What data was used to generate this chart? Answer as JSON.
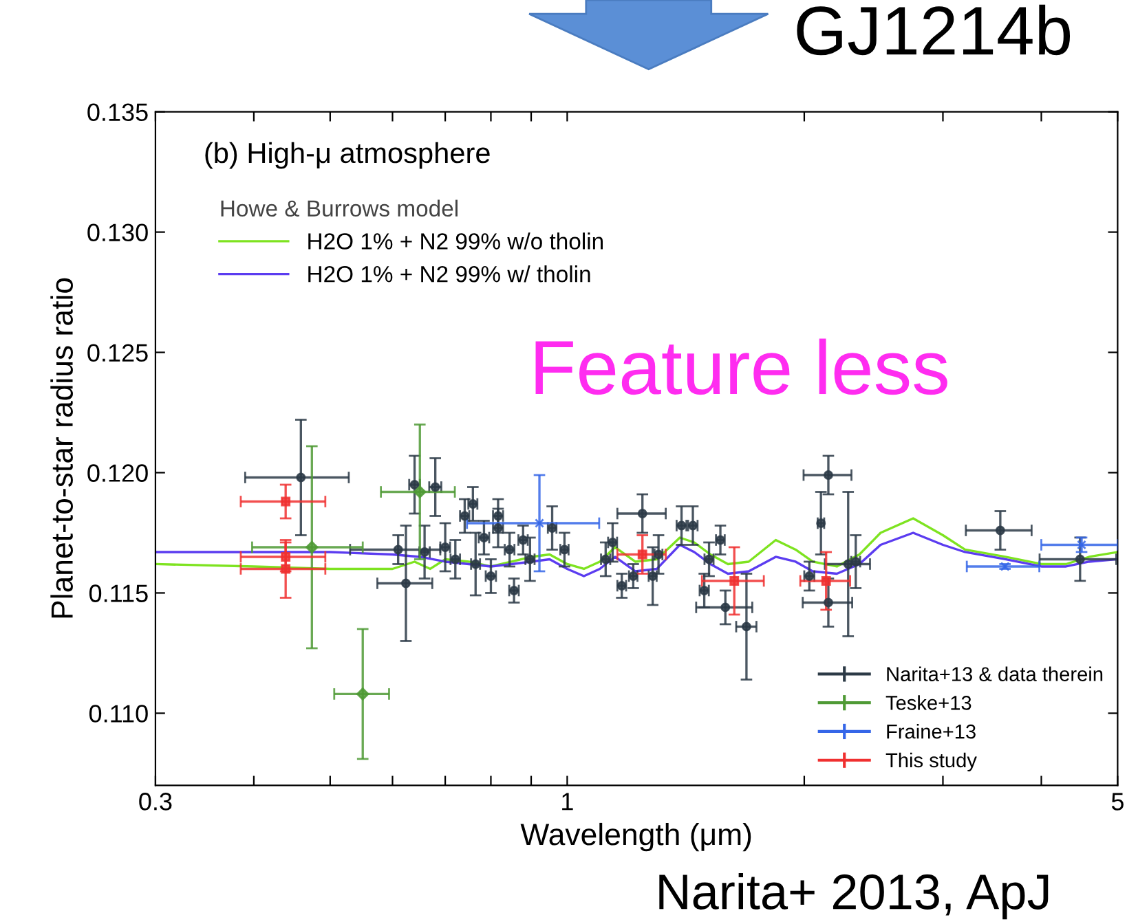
{
  "chart_data": {
    "type": "scatter",
    "title": "(b) High-μ atmosphere",
    "xlabel": "Wavelength (μm)",
    "ylabel": "Planet-to-star radius ratio",
    "legend_title": "Howe & Burrows model",
    "legend": [
      "top left",
      "bottom right"
    ],
    "log": "x",
    "xlim": [
      0.3,
      5
    ],
    "ylim": [
      0.107,
      0.135
    ],
    "xticks": [
      0.3,
      {
        "value": 0.4,
        "label": null
      },
      {
        "value": 0.5,
        "label": null
      },
      {
        "value": 0.6,
        "label": null
      },
      {
        "value": 0.7,
        "label": null
      },
      {
        "value": 0.8,
        "label": null
      },
      {
        "value": 0.9,
        "label": null
      },
      1,
      {
        "value": 2,
        "label": null
      },
      {
        "value": 3,
        "label": null
      },
      {
        "value": 4,
        "label": null
      },
      5
    ],
    "yticks": [
      {
        "value": 0.11,
        "label": "0.110"
      },
      0.115,
      {
        "value": 0.12,
        "label": "0.120"
      },
      0.125,
      {
        "value": 0.13,
        "label": "0.130"
      },
      0.135
    ],
    "annotations": [
      "GJ1214b",
      "Feature less",
      "Narita+ 2013, ApJ"
    ],
    "series": [
      {
        "name": "H2O 1% + N2 99% w/o tholin",
        "type": "line",
        "color": "#7ee320",
        "x": [
          0.3,
          0.4,
          0.5,
          0.6,
          0.64,
          0.67,
          0.7,
          0.75,
          0.8,
          0.85,
          0.9,
          0.95,
          1.0,
          1.05,
          1.1,
          1.15,
          1.22,
          1.3,
          1.39,
          1.45,
          1.52,
          1.6,
          1.7,
          1.84,
          1.95,
          2.05,
          2.2,
          2.35,
          2.5,
          2.75,
          3.0,
          3.2,
          3.6,
          4.0,
          4.3,
          4.6,
          5.0
        ],
        "values": [
          0.1162,
          0.1161,
          0.116,
          0.116,
          0.1163,
          0.116,
          0.1164,
          0.1163,
          0.1161,
          0.1163,
          0.1165,
          0.1166,
          0.1162,
          0.116,
          0.1163,
          0.1169,
          0.1163,
          0.1164,
          0.1173,
          0.1171,
          0.1166,
          0.1162,
          0.1163,
          0.1172,
          0.1168,
          0.1163,
          0.1161,
          0.1166,
          0.1175,
          0.1181,
          0.1174,
          0.1168,
          0.1165,
          0.1162,
          0.1162,
          0.1165,
          0.1167
        ]
      },
      {
        "name": "H2O 1% + N2 99% w/ tholin",
        "type": "line",
        "color": "#5b3cf0",
        "x": [
          0.3,
          0.4,
          0.5,
          0.6,
          0.65,
          0.7,
          0.75,
          0.8,
          0.85,
          0.9,
          0.95,
          1.0,
          1.05,
          1.1,
          1.15,
          1.22,
          1.3,
          1.39,
          1.45,
          1.52,
          1.6,
          1.7,
          1.84,
          1.95,
          2.05,
          2.2,
          2.35,
          2.5,
          2.75,
          3.0,
          3.2,
          3.6,
          4.0,
          4.3,
          4.6,
          5.0
        ],
        "values": [
          0.1167,
          0.1167,
          0.1167,
          0.1166,
          0.1165,
          0.1163,
          0.1162,
          0.1161,
          0.1162,
          0.1163,
          0.1164,
          0.116,
          0.1157,
          0.116,
          0.1165,
          0.1159,
          0.116,
          0.117,
          0.1167,
          0.1162,
          0.1158,
          0.1159,
          0.1165,
          0.1163,
          0.1159,
          0.1158,
          0.1162,
          0.117,
          0.1175,
          0.117,
          0.1167,
          0.1164,
          0.1161,
          0.1161,
          0.1163,
          0.1164
        ]
      },
      {
        "name": "Narita+13 & data therein",
        "marker": "circle",
        "color": "#2c3a46",
        "x": [
          0.459,
          0.61,
          0.624,
          0.64,
          0.68,
          0.659,
          0.7,
          0.721,
          0.741,
          0.759,
          0.765,
          0.817,
          0.817,
          0.784,
          0.856,
          0.8,
          0.879,
          0.845,
          0.897,
          0.957,
          0.992,
          1.142,
          1.119,
          1.246,
          1.173,
          1.213,
          1.284,
          1.306,
          1.397,
          1.444,
          1.493,
          1.514,
          1.565,
          1.588,
          1.689,
          2.146,
          2.1,
          2.274,
          2.03,
          2.146,
          2.325,
          3.548,
          4.48
        ],
        "values": [
          0.1198,
          0.1168,
          0.1154,
          0.1195,
          0.1194,
          0.1167,
          0.1169,
          0.1164,
          0.1182,
          0.1187,
          0.1162,
          0.1182,
          0.1177,
          0.1173,
          0.1151,
          0.1157,
          0.1172,
          0.1168,
          0.1164,
          0.1177,
          0.1168,
          0.1171,
          0.1164,
          0.1183,
          0.1153,
          0.1157,
          0.1157,
          0.1166,
          0.1178,
          0.1178,
          0.1151,
          0.1164,
          0.1172,
          0.1144,
          0.1136,
          0.1199,
          0.1179,
          0.1162,
          0.1157,
          0.1146,
          0.1163,
          0.1176,
          0.1164
        ],
        "errors": [
          0.0024,
          0.0006,
          0.0024,
          0.0012,
          0.0012,
          0.0011,
          0.001,
          0.0008,
          0.0007,
          0.0007,
          0.0013,
          0.0007,
          0.0008,
          0.0007,
          0.0005,
          0.0007,
          0.0006,
          0.0007,
          0.0009,
          0.0009,
          0.0007,
          0.0008,
          0.0007,
          0.0008,
          0.0005,
          0.0005,
          0.0012,
          0.0008,
          0.0008,
          0.0008,
          0.0007,
          0.0007,
          0.0006,
          0.0007,
          0.0022,
          0.0008,
          0.0013,
          0.003,
          0.0006,
          0.001,
          0.0011,
          0.0008,
          0.0009
        ],
        "xerrors": [
          0.069,
          0.08,
          0.05,
          0.01,
          0.012,
          0.01,
          0.01,
          0.01,
          0.01,
          0.01,
          0.01,
          0.012,
          0.012,
          0.012,
          0.012,
          0.012,
          0.012,
          0.012,
          0.012,
          0.012,
          0.012,
          0.015,
          0.015,
          0.088,
          0.015,
          0.015,
          0.015,
          0.015,
          0.02,
          0.02,
          0.02,
          0.02,
          0.02,
          0.13,
          0.05,
          0.15,
          0.02,
          0.15,
          0.03,
          0.155,
          0.03,
          0.34,
          0.5
        ]
      },
      {
        "name": "Teske+13",
        "marker": "diamond",
        "color": "#4f9a35",
        "x": [
          0.474,
          0.55,
          0.65
        ],
        "values": [
          0.1169,
          0.1108,
          0.1192
        ],
        "errors": [
          0.0042,
          0.0027,
          0.0028
        ],
        "xerrors": [
          0.076,
          0.044,
          0.07
        ]
      },
      {
        "name": "Fraine+13",
        "marker": "cross",
        "color": "#3566e8",
        "x": [
          0.922,
          3.597,
          4.5
        ],
        "values": [
          0.1179,
          0.1161,
          0.117
        ],
        "errors": [
          0.002,
          0.0001,
          0.0003
        ],
        "xerrors": [
          0.176,
          0.38,
          0.5
        ]
      },
      {
        "name": "This study",
        "marker": "square",
        "color": "#f03030",
        "x": [
          0.439,
          0.439,
          0.439,
          1.246,
          1.63,
          2.132
        ],
        "values": [
          0.1188,
          0.1165,
          0.116,
          0.1166,
          0.1155,
          0.1155
        ],
        "errors": [
          0.0007,
          0.0006,
          0.0012,
          0.0008,
          0.0014,
          0.0012
        ],
        "xerrors": [
          0.054,
          0.054,
          0.054,
          0.088,
          0.147,
          0.155
        ]
      }
    ]
  }
}
